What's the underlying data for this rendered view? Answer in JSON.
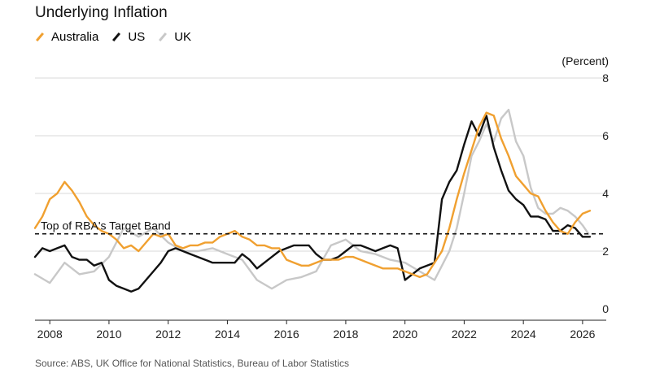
{
  "chart_data": {
    "type": "line",
    "title": "Underlying Inflation",
    "unit_label": "(Percent)",
    "xlim": [
      2007.5,
      2026.8
    ],
    "ylim": [
      0,
      8
    ],
    "x_ticks": [
      2008,
      2010,
      2012,
      2014,
      2016,
      2018,
      2020,
      2022,
      2024,
      2026
    ],
    "y_ticks": [
      0,
      2,
      4,
      6,
      8
    ],
    "grid": "horizontal",
    "legend_position": "top-left",
    "colors": {
      "Australia": "#f0a030",
      "US": "#111111",
      "UK": "#c8c8c8",
      "reference": "#111111",
      "grid": "#d9d9d9"
    },
    "reference_line": {
      "y": 2.6,
      "label": "Top of RBA's Target Band"
    },
    "series": [
      {
        "name": "UK",
        "x": [
          2007.5,
          2008.0,
          2008.5,
          2009.0,
          2009.5,
          2010.0,
          2010.5,
          2011.0,
          2011.5,
          2012.0,
          2012.5,
          2013.0,
          2013.5,
          2014.0,
          2014.5,
          2015.0,
          2015.5,
          2016.0,
          2016.5,
          2017.0,
          2017.5,
          2018.0,
          2018.5,
          2019.0,
          2019.5,
          2020.0,
          2020.5,
          2021.0,
          2021.25,
          2021.5,
          2021.75,
          2022.0,
          2022.25,
          2022.5,
          2022.75,
          2023.0,
          2023.25,
          2023.5,
          2023.75,
          2024.0,
          2024.25,
          2024.5,
          2024.75,
          2025.0,
          2025.25,
          2025.5,
          2025.75,
          2026.0,
          2026.2
        ],
        "values": [
          1.2,
          0.9,
          1.6,
          1.2,
          1.3,
          1.8,
          2.8,
          2.5,
          2.8,
          2.3,
          2.0,
          2.0,
          2.1,
          1.9,
          1.7,
          1.0,
          0.7,
          1.0,
          1.1,
          1.3,
          2.2,
          2.4,
          2.0,
          1.9,
          1.7,
          1.6,
          1.3,
          1.0,
          1.5,
          2.0,
          2.8,
          4.0,
          5.3,
          5.8,
          6.4,
          5.8,
          6.6,
          6.9,
          5.8,
          5.3,
          4.2,
          3.5,
          3.3,
          3.3,
          3.5,
          3.4,
          3.2,
          2.9,
          2.6
        ]
      },
      {
        "name": "US",
        "x": [
          2007.5,
          2007.75,
          2008.0,
          2008.25,
          2008.5,
          2008.75,
          2009.0,
          2009.25,
          2009.5,
          2009.75,
          2010.0,
          2010.25,
          2010.5,
          2010.75,
          2011.0,
          2011.25,
          2011.5,
          2011.75,
          2012.0,
          2012.25,
          2012.5,
          2012.75,
          2013.0,
          2013.25,
          2013.5,
          2013.75,
          2014.0,
          2014.25,
          2014.5,
          2014.75,
          2015.0,
          2015.25,
          2015.5,
          2015.75,
          2016.0,
          2016.25,
          2016.5,
          2016.75,
          2017.0,
          2017.25,
          2017.5,
          2017.75,
          2018.0,
          2018.25,
          2018.5,
          2018.75,
          2019.0,
          2019.25,
          2019.5,
          2019.75,
          2020.0,
          2020.25,
          2020.5,
          2020.75,
          2021.0,
          2021.25,
          2021.5,
          2021.75,
          2022.0,
          2022.25,
          2022.5,
          2022.75,
          2023.0,
          2023.25,
          2023.5,
          2023.75,
          2024.0,
          2024.25,
          2024.5,
          2024.75,
          2025.0,
          2025.25,
          2025.5,
          2025.75,
          2026.0,
          2026.25
        ],
        "values": [
          1.8,
          2.1,
          2.0,
          2.1,
          2.2,
          1.8,
          1.7,
          1.7,
          1.5,
          1.6,
          1.0,
          0.8,
          0.7,
          0.6,
          0.7,
          1.0,
          1.3,
          1.6,
          2.0,
          2.1,
          2.0,
          1.9,
          1.8,
          1.7,
          1.6,
          1.6,
          1.6,
          1.6,
          1.9,
          1.7,
          1.4,
          1.6,
          1.8,
          2.0,
          2.1,
          2.2,
          2.2,
          2.2,
          1.9,
          1.7,
          1.7,
          1.8,
          2.0,
          2.2,
          2.2,
          2.1,
          2.0,
          2.1,
          2.2,
          2.1,
          1.0,
          1.2,
          1.4,
          1.5,
          1.6,
          3.8,
          4.4,
          4.8,
          5.7,
          6.5,
          6.0,
          6.7,
          5.6,
          4.8,
          4.1,
          3.8,
          3.6,
          3.2,
          3.2,
          3.1,
          2.7,
          2.7,
          2.9,
          2.8,
          2.5,
          2.5
        ]
      },
      {
        "name": "Australia",
        "x": [
          2007.5,
          2007.75,
          2008.0,
          2008.25,
          2008.5,
          2008.75,
          2009.0,
          2009.25,
          2009.5,
          2009.75,
          2010.0,
          2010.25,
          2010.5,
          2010.75,
          2011.0,
          2011.25,
          2011.5,
          2011.75,
          2012.0,
          2012.25,
          2012.5,
          2012.75,
          2013.0,
          2013.25,
          2013.5,
          2013.75,
          2014.0,
          2014.25,
          2014.5,
          2014.75,
          2015.0,
          2015.25,
          2015.5,
          2015.75,
          2016.0,
          2016.25,
          2016.5,
          2016.75,
          2017.0,
          2017.25,
          2017.5,
          2017.75,
          2018.0,
          2018.25,
          2018.5,
          2018.75,
          2019.0,
          2019.25,
          2019.5,
          2019.75,
          2020.0,
          2020.25,
          2020.5,
          2020.75,
          2021.0,
          2021.25,
          2021.5,
          2021.75,
          2022.0,
          2022.25,
          2022.5,
          2022.75,
          2023.0,
          2023.25,
          2023.5,
          2023.75,
          2024.0,
          2024.25,
          2024.5,
          2024.75,
          2025.0,
          2025.25,
          2025.5,
          2025.75,
          2026.0,
          2026.25
        ],
        "values": [
          2.8,
          3.2,
          3.8,
          4.0,
          4.4,
          4.1,
          3.7,
          3.2,
          2.9,
          2.7,
          2.6,
          2.4,
          2.1,
          2.2,
          2.0,
          2.3,
          2.6,
          2.5,
          2.6,
          2.2,
          2.1,
          2.2,
          2.2,
          2.3,
          2.3,
          2.5,
          2.6,
          2.7,
          2.5,
          2.4,
          2.2,
          2.2,
          2.1,
          2.1,
          1.7,
          1.6,
          1.5,
          1.5,
          1.6,
          1.7,
          1.7,
          1.7,
          1.8,
          1.8,
          1.7,
          1.6,
          1.5,
          1.4,
          1.4,
          1.4,
          1.3,
          1.2,
          1.1,
          1.2,
          1.6,
          2.0,
          2.8,
          3.8,
          4.7,
          5.5,
          6.3,
          6.8,
          6.7,
          5.9,
          5.3,
          4.6,
          4.3,
          4.0,
          3.9,
          3.4,
          3.0,
          2.7,
          2.6,
          3.0,
          3.3,
          3.4
        ]
      }
    ]
  },
  "source_text": "Source: ABS, UK Office for National Statistics, Bureau of Labor Statistics"
}
